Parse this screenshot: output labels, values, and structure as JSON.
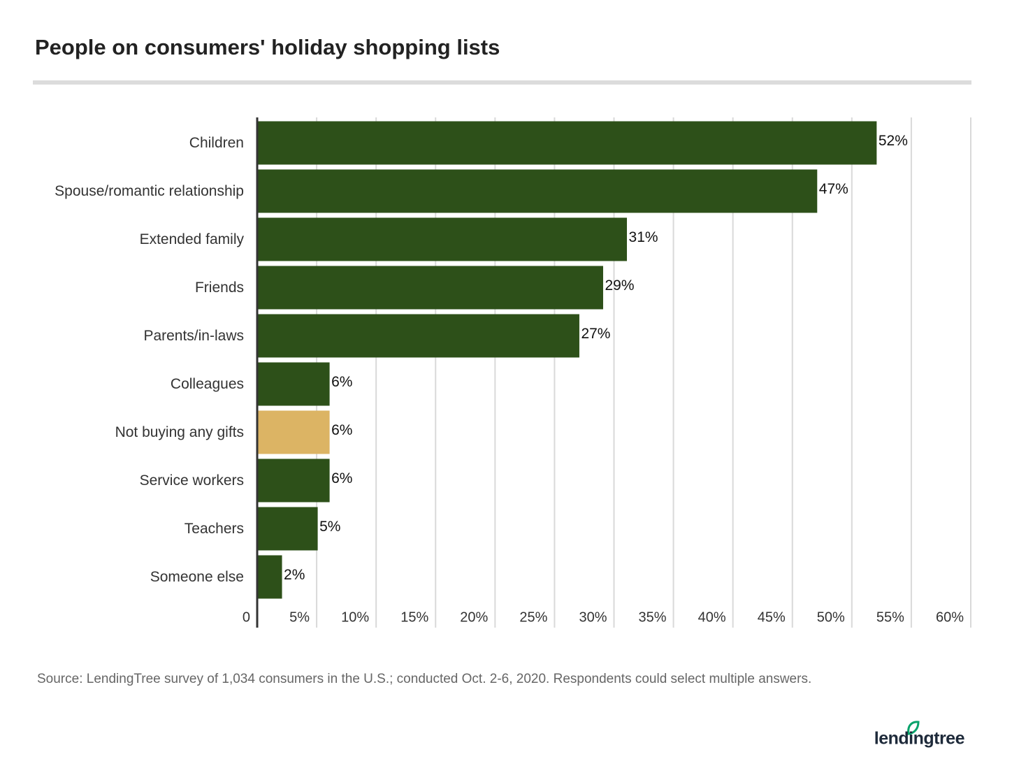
{
  "chart_data": {
    "type": "hbar",
    "title": "People on consumers' holiday shopping lists",
    "categories": [
      "Children",
      "Spouse/romantic relationship",
      "Extended family",
      "Friends",
      "Parents/in-laws",
      "Colleagues",
      "Not buying any gifts",
      "Service workers",
      "Teachers",
      "Someone else"
    ],
    "values": [
      52,
      47,
      31,
      29,
      27,
      6,
      6,
      6,
      5,
      2
    ],
    "value_labels": [
      "52%",
      "47%",
      "31%",
      "29%",
      "27%",
      "6%",
      "6%",
      "6%",
      "5%",
      "2%"
    ],
    "colors": [
      "#2d5019",
      "#2d5019",
      "#2d5019",
      "#2d5019",
      "#2d5019",
      "#2d5019",
      "#dcb464",
      "#2d5019",
      "#2d5019",
      "#2d5019"
    ],
    "xlim": [
      0,
      60
    ],
    "xticks": [
      0,
      {
        "value": 5,
        "label": "5%"
      },
      {
        "value": 10,
        "label": "10%"
      },
      {
        "value": 15,
        "label": "15%"
      },
      {
        "value": 20,
        "label": "20%"
      },
      {
        "value": 25,
        "label": "25%"
      },
      {
        "value": 30,
        "label": "30%"
      },
      {
        "value": 35,
        "label": "35%"
      },
      {
        "value": 40,
        "label": "40%"
      },
      {
        "value": 45,
        "label": "45%"
      },
      {
        "value": 50,
        "label": "50%"
      },
      {
        "value": 55,
        "label": "55%"
      },
      {
        "value": 60,
        "label": "60%"
      }
    ],
    "grid": true,
    "source": "Source: LendingTree survey of 1,034 consumers in the U.S.; conducted Oct. 2-6, 2020. Respondents could select multiple answers.",
    "logo": "lendingtree"
  }
}
